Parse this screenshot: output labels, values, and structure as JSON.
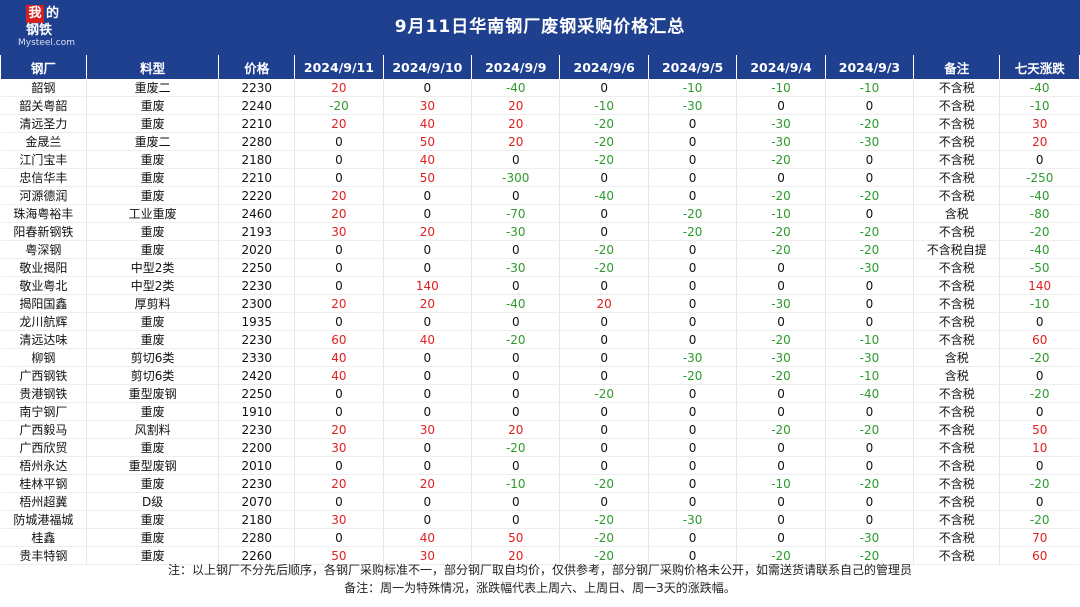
{
  "logo": {
    "char": "我",
    "t1": "的",
    "t2": "钢铁",
    "url": "Mysteel.com"
  },
  "title": "9月11日华南钢厂废钢采购价格汇总",
  "columns": [
    "钢厂",
    "料型",
    "价格",
    "2024/9/11",
    "2024/9/10",
    "2024/9/9",
    "2024/9/6",
    "2024/9/5",
    "2024/9/4",
    "2024/9/3",
    "备注",
    "七天涨跌"
  ],
  "rows": [
    [
      "韶钢",
      "重废二",
      "2230",
      "20",
      "0",
      "-40",
      "0",
      "-10",
      "-10",
      "-10",
      "不含税",
      "-40"
    ],
    [
      "韶关粤韶",
      "重废",
      "2240",
      "-20",
      "30",
      "20",
      "-10",
      "-30",
      "0",
      "0",
      "不含税",
      "-10"
    ],
    [
      "清远圣力",
      "重废",
      "2210",
      "20",
      "40",
      "20",
      "-20",
      "0",
      "-30",
      "-20",
      "不含税",
      "30"
    ],
    [
      "金晟兰",
      "重废二",
      "2280",
      "0",
      "50",
      "20",
      "-20",
      "0",
      "-30",
      "-30",
      "不含税",
      "20"
    ],
    [
      "江门宝丰",
      "重废",
      "2180",
      "0",
      "40",
      "0",
      "-20",
      "0",
      "-20",
      "0",
      "不含税",
      "0"
    ],
    [
      "忠信华丰",
      "重废",
      "2210",
      "0",
      "50",
      "-300",
      "0",
      "0",
      "0",
      "0",
      "不含税",
      "-250"
    ],
    [
      "河源德润",
      "重废",
      "2220",
      "20",
      "0",
      "0",
      "-40",
      "0",
      "-20",
      "-20",
      "不含税",
      "-40"
    ],
    [
      "珠海粤裕丰",
      "工业重废",
      "2460",
      "20",
      "0",
      "-70",
      "0",
      "-20",
      "-10",
      "0",
      "含税",
      "-80"
    ],
    [
      "阳春新钢铁",
      "重废",
      "2193",
      "30",
      "20",
      "-30",
      "0",
      "-20",
      "-20",
      "-20",
      "不含税",
      "-20"
    ],
    [
      "粤深钢",
      "重废",
      "2020",
      "0",
      "0",
      "0",
      "-20",
      "0",
      "-20",
      "-20",
      "不含税自提",
      "-40"
    ],
    [
      "敬业揭阳",
      "中型2类",
      "2250",
      "0",
      "0",
      "-30",
      "-20",
      "0",
      "0",
      "-30",
      "不含税",
      "-50"
    ],
    [
      "敬业粤北",
      "中型2类",
      "2230",
      "0",
      "140",
      "0",
      "0",
      "0",
      "0",
      "0",
      "不含税",
      "140"
    ],
    [
      "揭阳国鑫",
      "厚剪料",
      "2300",
      "20",
      "20",
      "-40",
      "20",
      "0",
      "-30",
      "0",
      "不含税",
      "-10"
    ],
    [
      "龙川航辉",
      "重废",
      "1935",
      "0",
      "0",
      "0",
      "0",
      "0",
      "0",
      "0",
      "不含税",
      "0"
    ],
    [
      "清远达味",
      "重废",
      "2230",
      "60",
      "40",
      "-20",
      "0",
      "0",
      "-20",
      "-10",
      "不含税",
      "60"
    ],
    [
      "柳钢",
      "剪切6类",
      "2330",
      "40",
      "0",
      "0",
      "0",
      "-30",
      "-30",
      "-30",
      "含税",
      "-20"
    ],
    [
      "广西钢铁",
      "剪切6类",
      "2420",
      "40",
      "0",
      "0",
      "0",
      "-20",
      "-20",
      "-10",
      "含税",
      "0"
    ],
    [
      "贵港钢铁",
      "重型废钢",
      "2250",
      "0",
      "0",
      "0",
      "-20",
      "0",
      "0",
      "-40",
      "不含税",
      "-20"
    ],
    [
      "南宁钢厂",
      "重废",
      "1910",
      "0",
      "0",
      "0",
      "0",
      "0",
      "0",
      "0",
      "不含税",
      "0"
    ],
    [
      "广西毅马",
      "风割料",
      "2230",
      "20",
      "30",
      "20",
      "0",
      "0",
      "-20",
      "-20",
      "不含税",
      "50"
    ],
    [
      "广西欣贸",
      "重废",
      "2200",
      "30",
      "0",
      "-20",
      "0",
      "0",
      "0",
      "0",
      "不含税",
      "10"
    ],
    [
      "梧州永达",
      "重型废钢",
      "2010",
      "0",
      "0",
      "0",
      "0",
      "0",
      "0",
      "0",
      "不含税",
      "0"
    ],
    [
      "桂林平钢",
      "重废",
      "2230",
      "20",
      "20",
      "-10",
      "-20",
      "0",
      "-10",
      "-20",
      "不含税",
      "-20"
    ],
    [
      "梧州超冀",
      "D级",
      "2070",
      "0",
      "0",
      "0",
      "0",
      "0",
      "0",
      "0",
      "不含税",
      "0"
    ],
    [
      "防城港福城",
      "重废",
      "2180",
      "30",
      "0",
      "0",
      "-20",
      "-30",
      "0",
      "0",
      "不含税",
      "-20"
    ],
    [
      "桂鑫",
      "重废",
      "2280",
      "0",
      "40",
      "50",
      "-20",
      "0",
      "0",
      "-30",
      "不含税",
      "70"
    ],
    [
      "贵丰特钢",
      "重废",
      "2260",
      "50",
      "30",
      "20",
      "-20",
      "0",
      "-20",
      "-20",
      "不含税",
      "60"
    ]
  ],
  "notes": {
    "line1": "注：以上钢厂不分先后顺序，各钢厂采购标准不一，部分钢厂取自均价，仅供参考，部分钢厂采购价格未公开，如需送货请联系自己的管理员",
    "line2": "备注：周一为特殊情况，涨跌幅代表上周六、上周日、周一3天的涨跌幅。"
  },
  "colors": {
    "header_bg": "#1f3f8f",
    "positive": "#e02020",
    "negative": "#2e9a2e"
  }
}
